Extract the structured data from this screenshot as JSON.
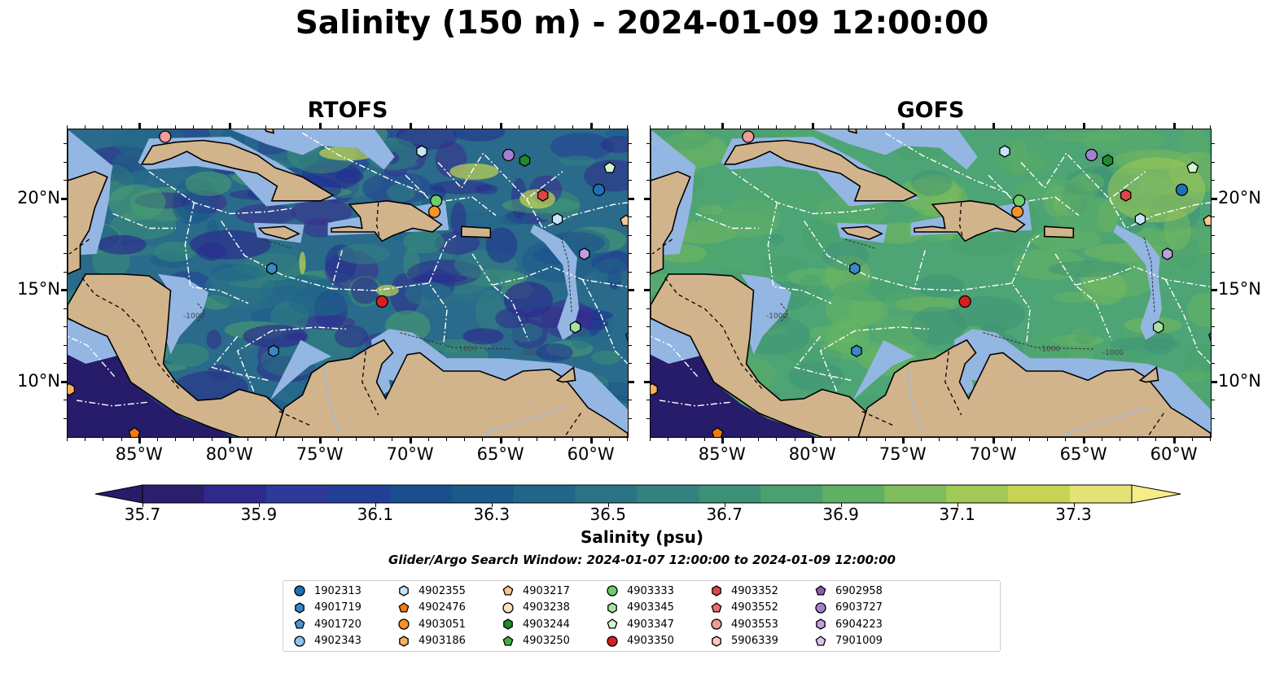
{
  "title": "Salinity (150 m) - 2024-01-09 12:00:00",
  "panels": [
    {
      "title": "RTOFS"
    },
    {
      "title": "GOFS"
    }
  ],
  "lon_ticks": [
    "85°W",
    "80°W",
    "75°W",
    "70°W",
    "65°W",
    "60°W"
  ],
  "lat_ticks": [
    "20°N",
    "15°N",
    "10°N"
  ],
  "colorbar": {
    "ticks": [
      "35.7",
      "35.9",
      "36.1",
      "36.3",
      "36.5",
      "36.7",
      "36.9",
      "37.1",
      "37.3"
    ],
    "label": "Salinity (psu)",
    "range": [
      35.7,
      37.4
    ],
    "colors": [
      "#2a1f6d",
      "#2d2a8c",
      "#2e3a99",
      "#233f95",
      "#1a4d8d",
      "#1a5a8b",
      "#216688",
      "#2a7485",
      "#33827f",
      "#3b9077",
      "#4aa06f",
      "#5fb065",
      "#7fbd5c",
      "#a0c956",
      "#c5d553",
      "#e4e276"
    ]
  },
  "search_window": "Glider/Argo Search Window: 2024-01-07 12:00:00 to 2024-01-09 12:00:00",
  "colors": {
    "land": "#d2b48c",
    "shelf": "#94b6e2",
    "deep_low": "#261c69",
    "eez": "#ffffff"
  },
  "legend": [
    {
      "id": "1902313",
      "marker": "circle",
      "color": "#1f6fb5"
    },
    {
      "id": "4901719",
      "marker": "hexagon",
      "color": "#3a86c8"
    },
    {
      "id": "4901720",
      "marker": "pentagon",
      "color": "#4a95d8"
    },
    {
      "id": "4902343",
      "marker": "circle",
      "color": "#8ec4ee"
    },
    {
      "id": "4902355",
      "marker": "hexagon",
      "color": "#c8e4f8"
    },
    {
      "id": "4902476",
      "marker": "pentagon",
      "color": "#f07a10"
    },
    {
      "id": "4903051",
      "marker": "circle",
      "color": "#f5922a"
    },
    {
      "id": "4903186",
      "marker": "hexagon",
      "color": "#f8b060"
    },
    {
      "id": "4903217",
      "marker": "pentagon",
      "color": "#fac68c"
    },
    {
      "id": "4903238",
      "marker": "circle",
      "color": "#fde0c0"
    },
    {
      "id": "4903244",
      "marker": "hexagon",
      "color": "#1f8a2a"
    },
    {
      "id": "4903250",
      "marker": "pentagon",
      "color": "#3eb03e"
    },
    {
      "id": "4903333",
      "marker": "circle",
      "color": "#6dcc6d"
    },
    {
      "id": "4903345",
      "marker": "hexagon",
      "color": "#a6e3a0"
    },
    {
      "id": "4903347",
      "marker": "pentagon",
      "color": "#d4f5ce"
    },
    {
      "id": "4903350",
      "marker": "circle",
      "color": "#d62020"
    },
    {
      "id": "4903352",
      "marker": "hexagon",
      "color": "#e04545"
    },
    {
      "id": "4903552",
      "marker": "pentagon",
      "color": "#ea6d6d"
    },
    {
      "id": "4903553",
      "marker": "circle",
      "color": "#f19a9a"
    },
    {
      "id": "5906339",
      "marker": "hexagon",
      "color": "#f8c8c8"
    },
    {
      "id": "6902958",
      "marker": "pentagon",
      "color": "#8a5cb8"
    },
    {
      "id": "6903727",
      "marker": "circle",
      "color": "#a77fd0"
    },
    {
      "id": "6904223",
      "marker": "hexagon",
      "color": "#c09ee0"
    },
    {
      "id": "7901009",
      "marker": "pentagon",
      "color": "#dcc4f0"
    }
  ],
  "floats": [
    {
      "id": "4903553",
      "lon": -83.6,
      "lat": 23.4
    },
    {
      "id": "4902355",
      "lon": -69.4,
      "lat": 22.6
    },
    {
      "id": "6903727",
      "lon": -64.6,
      "lat": 22.4
    },
    {
      "id": "4903244",
      "lon": -63.7,
      "lat": 22.1
    },
    {
      "id": "4903347",
      "lon": -59.0,
      "lat": 21.7
    },
    {
      "id": "1902313",
      "lon": -59.6,
      "lat": 20.5
    },
    {
      "id": "4903352",
      "lon": -62.7,
      "lat": 20.2
    },
    {
      "id": "4903333",
      "lon": -68.6,
      "lat": 19.9
    },
    {
      "id": "4903051",
      "lon": -68.7,
      "lat": 19.3
    },
    {
      "id": "4902355",
      "lon": -61.9,
      "lat": 18.9
    },
    {
      "id": "4903217",
      "lon": -58.1,
      "lat": 18.8
    },
    {
      "id": "6904223",
      "lon": -60.4,
      "lat": 17.0
    },
    {
      "id": "4901719",
      "lon": -77.7,
      "lat": 16.2
    },
    {
      "id": "4903350",
      "lon": -71.6,
      "lat": 14.4
    },
    {
      "id": "4903345",
      "lon": -60.9,
      "lat": 13.0
    },
    {
      "id": "6902958",
      "lon": -57.8,
      "lat": 12.5
    },
    {
      "id": "4901719",
      "lon": -77.6,
      "lat": 11.7
    },
    {
      "id": "4903186",
      "lon": -88.9,
      "lat": 9.6
    },
    {
      "id": "4902476",
      "lon": -85.3,
      "lat": 7.2
    }
  ]
}
